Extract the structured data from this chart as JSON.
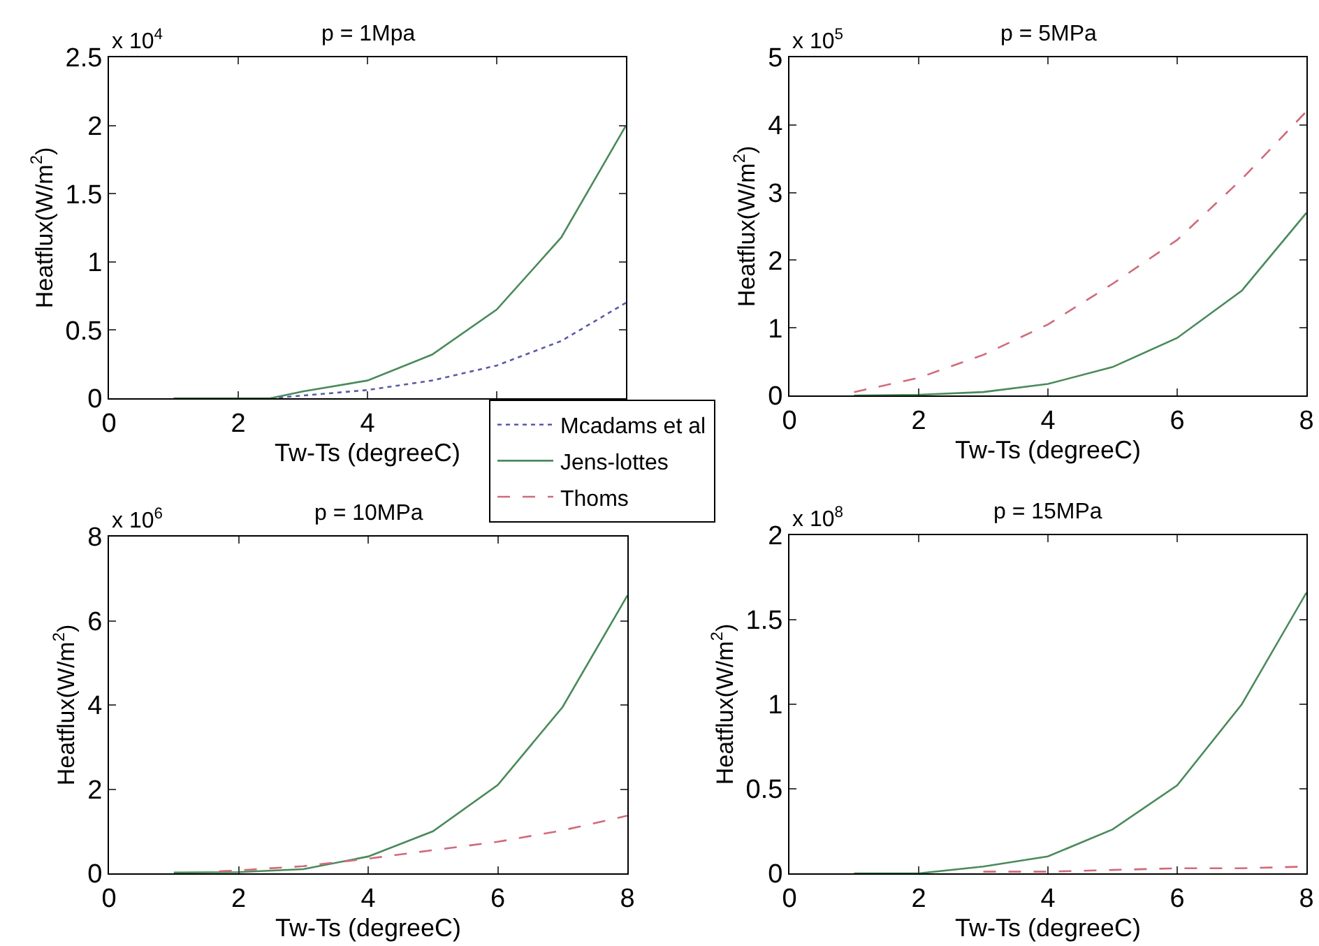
{
  "chart_data": [
    {
      "type": "line",
      "title": "p = 1Mpa",
      "xlabel": "Tw-Ts (degreeC)",
      "ylabel": "Heatflux(W/m$^{2}$)",
      "annotations": [
        "x 10$^{4}$"
      ],
      "xlim": [
        0,
        8
      ],
      "xticks": [
        0,
        2,
        4,
        {
          "value": 6,
          "label": null
        },
        {
          "value": 8,
          "label": null
        }
      ],
      "ylim": [
        0,
        2.5
      ],
      "yticks": [
        0,
        0.5,
        1,
        1.5,
        2,
        2.5
      ],
      "legend": "bottom right",
      "series": [
        {
          "name": "Mcadams et al",
          "color": "#5a5aa8",
          "line_style": "dotted",
          "x": [
            2.5,
            3,
            4,
            5,
            6,
            7,
            8
          ],
          "values": [
            0,
            0.02,
            0.06,
            0.13,
            0.24,
            0.42,
            0.7
          ]
        },
        {
          "name": "Jens-lottes",
          "color": "#4a8a5a",
          "line_style": "solid",
          "x": [
            1,
            2,
            2.5,
            3,
            4,
            5,
            6,
            7,
            8
          ],
          "values": [
            0,
            0,
            0,
            0.05,
            0.13,
            0.32,
            0.65,
            1.18,
            2.0
          ]
        }
      ]
    },
    {
      "type": "line",
      "title": "p = 5MPa",
      "xlabel": "Tw-Ts (degreeC)",
      "ylabel": "Heatflux(W/m$^{2}$)",
      "annotations": [
        "x 10$^{5}$"
      ],
      "xlim": [
        0,
        8
      ],
      "xticks": [
        0,
        2,
        4,
        6,
        8
      ],
      "ylim": [
        0,
        5
      ],
      "yticks": [
        0,
        1,
        2,
        3,
        4,
        5
      ],
      "legend": "bottom left",
      "series": [
        {
          "name": "Jens-lottes",
          "color": "#4a8a5a",
          "line_style": "solid",
          "x": [
            1,
            2,
            3,
            4,
            5,
            6,
            7,
            8
          ],
          "values": [
            0,
            0.01,
            0.05,
            0.17,
            0.42,
            0.85,
            1.55,
            2.7
          ]
        },
        {
          "name": "Thoms",
          "color": "#d06a7a",
          "line_style": "dashed",
          "x": [
            1,
            2,
            3,
            4,
            5,
            6,
            7,
            8
          ],
          "values": [
            0.05,
            0.26,
            0.6,
            1.05,
            1.65,
            2.3,
            3.2,
            4.2
          ]
        }
      ]
    },
    {
      "type": "line",
      "title": "p = 10MPa",
      "xlabel": "Tw-Ts (degreeC)",
      "ylabel": "Heatflux(W/m$^{2}$)",
      "annotations": [
        "x 10$^{6}$"
      ],
      "xlim": [
        0,
        8
      ],
      "xticks": [
        0,
        2,
        4,
        6,
        8
      ],
      "ylim": [
        0,
        8
      ],
      "yticks": [
        0,
        2,
        4,
        6,
        8
      ],
      "legend": "top right",
      "series": [
        {
          "name": "Jens-lottes",
          "color": "#4a8a5a",
          "line_style": "solid",
          "x": [
            1,
            2,
            3,
            4,
            5,
            6,
            7,
            8
          ],
          "values": [
            0.02,
            0.03,
            0.1,
            0.4,
            1.0,
            2.1,
            3.95,
            6.6
          ]
        },
        {
          "name": "Thoms",
          "color": "#d06a7a",
          "line_style": "dashed",
          "x": [
            1.7,
            2,
            3,
            4,
            5,
            6,
            7,
            8
          ],
          "values": [
            0.05,
            0.07,
            0.17,
            0.35,
            0.55,
            0.75,
            1.02,
            1.37
          ]
        }
      ]
    },
    {
      "type": "line",
      "title": "p = 15MPa",
      "xlabel": "Tw-Ts (degreeC)",
      "ylabel": "Heatflux(W/m$^{2}$)",
      "annotations": [
        "x 10$^{8}$"
      ],
      "xlim": [
        0,
        8
      ],
      "xticks": [
        0,
        2,
        4,
        6,
        8
      ],
      "ylim": [
        0,
        2
      ],
      "yticks": [
        0,
        0.5,
        1,
        1.5,
        2
      ],
      "legend": "top left",
      "series": [
        {
          "name": "Jens-lottes",
          "color": "#4a8a5a",
          "line_style": "solid",
          "x": [
            1,
            2,
            3,
            4,
            5,
            6,
            7,
            8
          ],
          "values": [
            0,
            0,
            0.04,
            0.1,
            0.26,
            0.52,
            1.0,
            1.66
          ]
        },
        {
          "name": "Thoms",
          "color": "#d06a7a",
          "line_style": "dashed",
          "x": [
            3,
            4,
            5,
            6,
            7,
            8
          ],
          "values": [
            0.01,
            0.01,
            0.02,
            0.03,
            0.03,
            0.04
          ]
        }
      ]
    }
  ]
}
